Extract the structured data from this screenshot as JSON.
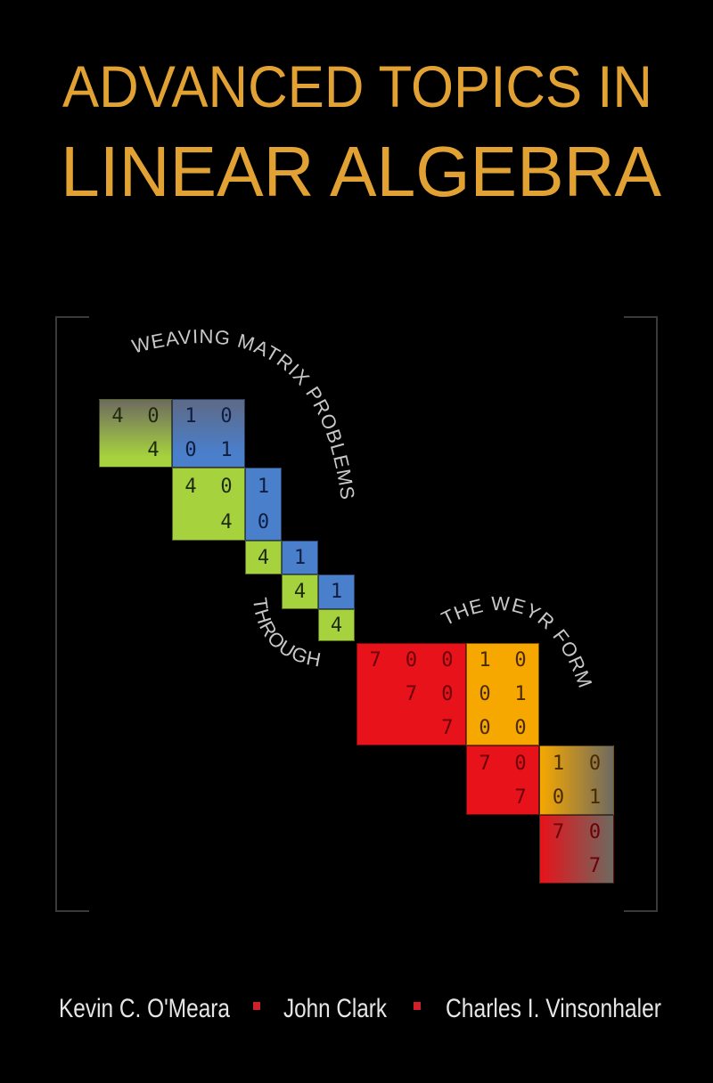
{
  "title": {
    "line1": "ADVANCED TOPICS IN",
    "line2": "LINEAR ALGEBRA",
    "color": "#e2a233"
  },
  "subtitle": {
    "part1": "WEAVING MATRIX PROBLEMS",
    "part2": "THROUGH",
    "part3": "THE WEYR FORM",
    "color": "#c8c8c8"
  },
  "matrix": {
    "colors": {
      "green": "#a6d23e",
      "blue": "#4a7fcc",
      "red": "#e8121a",
      "orange": "#f6a800",
      "gray": "#6e6a60"
    },
    "blocks": [
      {
        "color": "green",
        "cells": [
          [
            "4",
            "0"
          ],
          [
            "",
            "4"
          ]
        ]
      },
      {
        "color": "blue",
        "cells": [
          [
            "1",
            "0"
          ],
          [
            "0",
            "1"
          ]
        ]
      },
      {
        "color": "green",
        "cells": [
          [
            "4",
            "0"
          ],
          [
            "",
            "4"
          ]
        ]
      },
      {
        "color": "blue",
        "cells": [
          [
            "1"
          ],
          [
            "0"
          ]
        ]
      },
      {
        "color": "green",
        "cells": [
          [
            "4"
          ]
        ]
      },
      {
        "color": "blue",
        "cells": [
          [
            "1"
          ]
        ]
      },
      {
        "color": "green",
        "cells": [
          [
            "4"
          ]
        ]
      },
      {
        "color": "blue",
        "cells": [
          [
            "1"
          ]
        ]
      },
      {
        "color": "green",
        "cells": [
          [
            "4"
          ]
        ]
      },
      {
        "color": "red",
        "cells": [
          [
            "7",
            "0",
            "0"
          ],
          [
            "",
            "7",
            "0"
          ],
          [
            "",
            "",
            "7"
          ]
        ]
      },
      {
        "color": "orange",
        "cells": [
          [
            "1",
            "0"
          ],
          [
            "0",
            "1"
          ],
          [
            "0",
            "0"
          ]
        ]
      },
      {
        "color": "red",
        "cells": [
          [
            "7",
            "0"
          ],
          [
            "",
            "7"
          ]
        ]
      },
      {
        "color": "orange",
        "cells": [
          [
            "1",
            "0"
          ],
          [
            "0",
            "1"
          ]
        ]
      },
      {
        "color": "red",
        "cells": [
          [
            "7",
            "0"
          ],
          [
            "",
            "7"
          ]
        ]
      }
    ]
  },
  "authors": [
    {
      "name": "Kevin C. O'Meara"
    },
    {
      "name": "John Clark"
    },
    {
      "name": "Charles I. Vinsonhaler"
    }
  ],
  "separator_color": "#d0202a"
}
